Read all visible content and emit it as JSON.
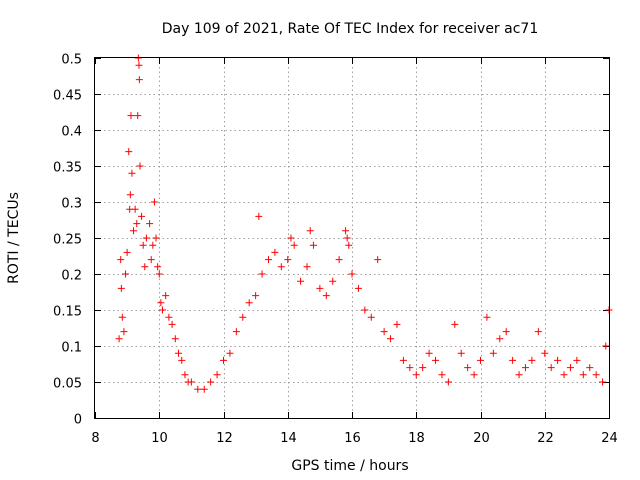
{
  "chart_data": {
    "type": "scatter",
    "title": "Day 109 of 2021, Rate Of TEC Index for receiver ac71",
    "xlabel": "GPS time / hours",
    "ylabel": "ROTI / TECUs",
    "xlim": [
      8,
      24
    ],
    "ylim": [
      0,
      0.5
    ],
    "xticks": [
      8,
      10,
      12,
      14,
      16,
      18,
      20,
      22,
      24
    ],
    "xtick_labels": [
      "8",
      "10",
      "12",
      "14",
      "16",
      "18",
      "20",
      "22",
      "24"
    ],
    "yticks": [
      0,
      0.05,
      0.1,
      0.15,
      0.2,
      0.25,
      0.3,
      0.35,
      0.4,
      0.45,
      0.5
    ],
    "ytick_labels": [
      "0",
      "0.05",
      "0.1",
      "0.15",
      "0.2",
      "0.25",
      "0.3",
      "0.35",
      "0.4",
      "0.45",
      "0.5"
    ],
    "grid": true,
    "marker": "plus",
    "color": "#ff0000",
    "series": [
      {
        "name": "ROTI",
        "points": [
          [
            8.75,
            0.11
          ],
          [
            8.8,
            0.22
          ],
          [
            8.82,
            0.18
          ],
          [
            8.85,
            0.14
          ],
          [
            8.9,
            0.12
          ],
          [
            8.95,
            0.2
          ],
          [
            9.0,
            0.23
          ],
          [
            9.05,
            0.37
          ],
          [
            9.08,
            0.29
          ],
          [
            9.1,
            0.31
          ],
          [
            9.12,
            0.42
          ],
          [
            9.15,
            0.34
          ],
          [
            9.2,
            0.26
          ],
          [
            9.25,
            0.29
          ],
          [
            9.3,
            0.27
          ],
          [
            9.33,
            0.42
          ],
          [
            9.35,
            0.5
          ],
          [
            9.37,
            0.49
          ],
          [
            9.38,
            0.47
          ],
          [
            9.4,
            0.35
          ],
          [
            9.45,
            0.28
          ],
          [
            9.5,
            0.24
          ],
          [
            9.55,
            0.21
          ],
          [
            9.6,
            0.25
          ],
          [
            9.7,
            0.27
          ],
          [
            9.75,
            0.22
          ],
          [
            9.8,
            0.24
          ],
          [
            9.85,
            0.3
          ],
          [
            9.9,
            0.25
          ],
          [
            9.95,
            0.21
          ],
          [
            10.0,
            0.2
          ],
          [
            10.05,
            0.16
          ],
          [
            10.1,
            0.15
          ],
          [
            10.2,
            0.17
          ],
          [
            10.3,
            0.14
          ],
          [
            10.4,
            0.13
          ],
          [
            10.5,
            0.11
          ],
          [
            10.6,
            0.09
          ],
          [
            10.7,
            0.08
          ],
          [
            10.8,
            0.06
          ],
          [
            10.9,
            0.05
          ],
          [
            11.0,
            0.05
          ],
          [
            11.2,
            0.04
          ],
          [
            11.4,
            0.04
          ],
          [
            11.6,
            0.05
          ],
          [
            11.8,
            0.06
          ],
          [
            12.0,
            0.08
          ],
          [
            12.2,
            0.09
          ],
          [
            12.4,
            0.12
          ],
          [
            12.6,
            0.14
          ],
          [
            12.8,
            0.16
          ],
          [
            13.0,
            0.17
          ],
          [
            13.1,
            0.28
          ],
          [
            13.2,
            0.2
          ],
          [
            13.4,
            0.22
          ],
          [
            13.6,
            0.23
          ],
          [
            13.8,
            0.21
          ],
          [
            14.0,
            0.22
          ],
          [
            14.1,
            0.25
          ],
          [
            14.2,
            0.24
          ],
          [
            14.4,
            0.19
          ],
          [
            14.6,
            0.21
          ],
          [
            14.7,
            0.26
          ],
          [
            14.8,
            0.24
          ],
          [
            15.0,
            0.18
          ],
          [
            15.2,
            0.17
          ],
          [
            15.4,
            0.19
          ],
          [
            15.6,
            0.22
          ],
          [
            15.8,
            0.26
          ],
          [
            15.85,
            0.25
          ],
          [
            15.9,
            0.24
          ],
          [
            16.0,
            0.2
          ],
          [
            16.2,
            0.18
          ],
          [
            16.4,
            0.15
          ],
          [
            16.6,
            0.14
          ],
          [
            16.8,
            0.22
          ],
          [
            17.0,
            0.12
          ],
          [
            17.2,
            0.11
          ],
          [
            17.4,
            0.13
          ],
          [
            17.6,
            0.08
          ],
          [
            17.8,
            0.07
          ],
          [
            18.0,
            0.06
          ],
          [
            18.2,
            0.07
          ],
          [
            18.4,
            0.09
          ],
          [
            18.6,
            0.08
          ],
          [
            18.8,
            0.06
          ],
          [
            19.0,
            0.05
          ],
          [
            19.2,
            0.13
          ],
          [
            19.4,
            0.09
          ],
          [
            19.6,
            0.07
          ],
          [
            19.8,
            0.06
          ],
          [
            20.0,
            0.08
          ],
          [
            20.2,
            0.14
          ],
          [
            20.4,
            0.09
          ],
          [
            20.6,
            0.11
          ],
          [
            20.8,
            0.12
          ],
          [
            21.0,
            0.08
          ],
          [
            21.2,
            0.06
          ],
          [
            21.4,
            0.07
          ],
          [
            21.6,
            0.08
          ],
          [
            21.8,
            0.12
          ],
          [
            22.0,
            0.09
          ],
          [
            22.2,
            0.07
          ],
          [
            22.4,
            0.08
          ],
          [
            22.6,
            0.06
          ],
          [
            22.8,
            0.07
          ],
          [
            23.0,
            0.08
          ],
          [
            23.2,
            0.06
          ],
          [
            23.4,
            0.07
          ],
          [
            23.6,
            0.06
          ],
          [
            23.8,
            0.05
          ],
          [
            23.9,
            0.1
          ],
          [
            24.0,
            0.15
          ]
        ]
      }
    ]
  }
}
